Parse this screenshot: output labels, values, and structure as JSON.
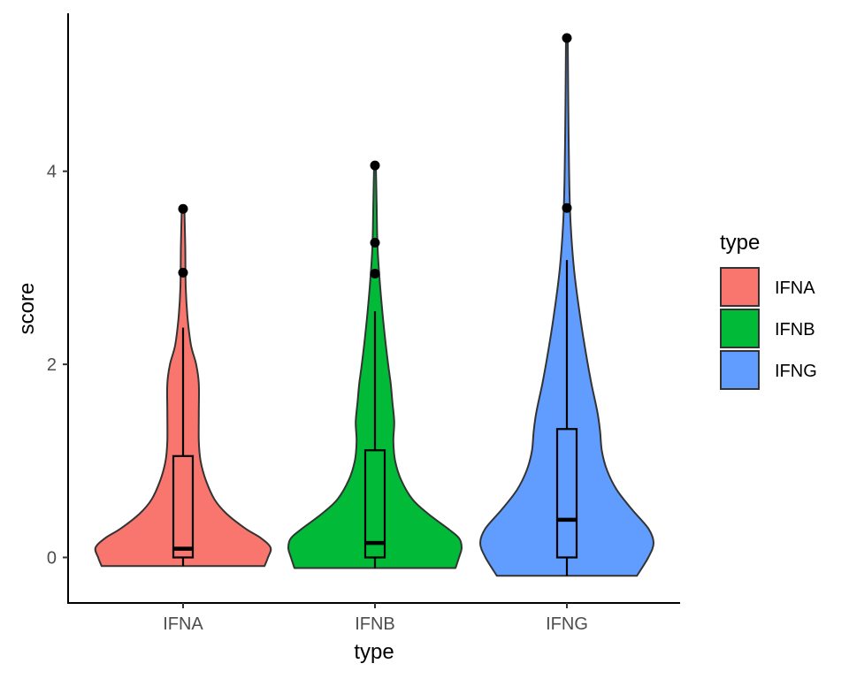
{
  "chart_data": {
    "type": "violin",
    "xlabel": "type",
    "ylabel": "score",
    "categories": [
      "IFNA",
      "IFNB",
      "IFNG"
    ],
    "yticks": [
      0,
      2,
      4
    ],
    "ylim": [
      -0.45,
      5.75
    ],
    "colors": {
      "IFNA": "#F8766D",
      "IFNB": "#00BA38",
      "IFNG": "#619CFF"
    },
    "legend": {
      "title": "type",
      "position": "right",
      "items": [
        "IFNA",
        "IFNB",
        "IFNG"
      ]
    },
    "groups": [
      {
        "name": "IFNA",
        "box": {
          "min": -0.09,
          "q1": 0.0,
          "median": 0.09,
          "q3": 1.05,
          "whisker_high": 2.38
        },
        "outliers": [
          2.95,
          3.61
        ],
        "density": [
          [
            -0.09,
            0.93
          ],
          [
            0.0,
            0.97
          ],
          [
            0.1,
            1.0
          ],
          [
            0.2,
            0.89
          ],
          [
            0.3,
            0.71
          ],
          [
            0.45,
            0.5
          ],
          [
            0.6,
            0.36
          ],
          [
            0.8,
            0.26
          ],
          [
            1.0,
            0.2
          ],
          [
            1.2,
            0.18
          ],
          [
            1.5,
            0.18
          ],
          [
            1.8,
            0.18
          ],
          [
            2.0,
            0.15
          ],
          [
            2.2,
            0.09
          ],
          [
            2.5,
            0.05
          ],
          [
            2.8,
            0.03
          ],
          [
            3.2,
            0.025
          ],
          [
            3.61,
            0.015
          ]
        ]
      },
      {
        "name": "IFNB",
        "box": {
          "min": -0.11,
          "q1": 0.0,
          "median": 0.15,
          "q3": 1.11,
          "whisker_high": 2.55
        },
        "outliers": [
          2.94,
          3.26,
          4.06
        ],
        "density": [
          [
            -0.11,
            0.92
          ],
          [
            0.0,
            0.96
          ],
          [
            0.1,
            0.99
          ],
          [
            0.2,
            0.96
          ],
          [
            0.3,
            0.83
          ],
          [
            0.45,
            0.61
          ],
          [
            0.6,
            0.43
          ],
          [
            0.8,
            0.3
          ],
          [
            1.0,
            0.23
          ],
          [
            1.2,
            0.21
          ],
          [
            1.4,
            0.22
          ],
          [
            1.6,
            0.2
          ],
          [
            1.8,
            0.18
          ],
          [
            2.0,
            0.15
          ],
          [
            2.4,
            0.1
          ],
          [
            2.8,
            0.06
          ],
          [
            3.2,
            0.03
          ],
          [
            3.6,
            0.02
          ],
          [
            4.06,
            0.01
          ]
        ]
      },
      {
        "name": "IFNG",
        "box": {
          "min": -0.19,
          "q1": 0.0,
          "median": 0.39,
          "q3": 1.33,
          "whisker_high": 3.08
        },
        "outliers": [
          3.62,
          5.38
        ],
        "density": [
          [
            -0.19,
            0.8
          ],
          [
            0.0,
            0.93
          ],
          [
            0.15,
            0.99
          ],
          [
            0.3,
            0.93
          ],
          [
            0.5,
            0.74
          ],
          [
            0.7,
            0.57
          ],
          [
            0.9,
            0.46
          ],
          [
            1.1,
            0.4
          ],
          [
            1.3,
            0.38
          ],
          [
            1.5,
            0.35
          ],
          [
            1.8,
            0.28
          ],
          [
            2.1,
            0.22
          ],
          [
            2.5,
            0.15
          ],
          [
            3.0,
            0.08
          ],
          [
            3.5,
            0.04
          ],
          [
            4.0,
            0.025
          ],
          [
            4.5,
            0.018
          ],
          [
            5.0,
            0.013
          ],
          [
            5.38,
            0.01
          ]
        ]
      }
    ]
  }
}
